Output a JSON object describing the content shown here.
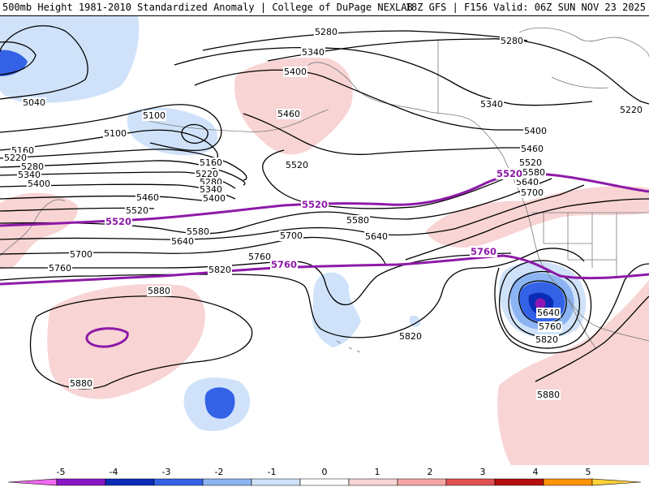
{
  "header": {
    "title": "500mb Height 1981-2010 Standardized Anomaly | College of DuPage NEXLAB",
    "run_info": "18Z GFS | F156 Valid: 06Z SUN NOV 23 2025"
  },
  "contour_labels": {
    "c5040": "5040",
    "c5100": "5100",
    "c5100b": "5100",
    "c5160": "5160",
    "c5160b": "5160",
    "c5220": "5220",
    "c5220b": "5220",
    "c5220c": "5220",
    "c5280": "5280",
    "c5280b": "5280",
    "c5280c": "5280",
    "c5280d": "5280",
    "c5340": "5340",
    "c5340b": "5340",
    "c5340c": "5340",
    "c5340d": "5340",
    "c5400": "5400",
    "c5400b": "5400",
    "c5400c": "5400",
    "c5400d": "5400",
    "c5460": "5460",
    "c5460b": "5460",
    "c5460c": "5460",
    "c5520a": "5520",
    "c5520b": "5520",
    "c5520c": "5520",
    "c5580": "5580",
    "c5580b": "5580",
    "c5580c": "5580",
    "c5640": "5640",
    "c5640b": "5640",
    "c5640c": "5640",
    "c5640d": "5640",
    "c5700": "5700",
    "c5700b": "5700",
    "c5700c": "5700",
    "c5760": "5760",
    "c5760b": "5760",
    "c5760c": "5760",
    "c5820": "5820",
    "c5820b": "5820",
    "c5820c": "5820",
    "c5880": "5880",
    "c5880b": "5880",
    "c5880c": "5880"
  },
  "highlight_labels": {
    "m5520a": "5520",
    "m5520b": "5520",
    "m5520c": "5520",
    "m5760a": "5760",
    "m5760b": "5760"
  },
  "colorbar": {
    "ticks": [
      "-5",
      "-4",
      "-3",
      "-2",
      "-1",
      "0",
      "1",
      "2",
      "3",
      "4",
      "5"
    ],
    "colors": [
      "#ef6bef",
      "#8a16c6",
      "#0a2ab8",
      "#3462e6",
      "#8cb4f2",
      "#cfe2fa",
      "#ffffff",
      "#f8d4d4",
      "#f6a6a6",
      "#e05252",
      "#b80e0e",
      "#ff9300",
      "#ffd038"
    ],
    "min": -6,
    "max": 6
  },
  "colors": {
    "contour": "#000000",
    "highlight": "#8e1aa8",
    "pos_anom_light": "#f8d4d4",
    "neg_anom_light": "#cfe2fa",
    "neg_anom_mid": "#8cb4f2",
    "neg_anom_strong": "#3462e6",
    "neg_anom_deep": "#0a2ab8",
    "boundary": "#7a7a7a"
  }
}
